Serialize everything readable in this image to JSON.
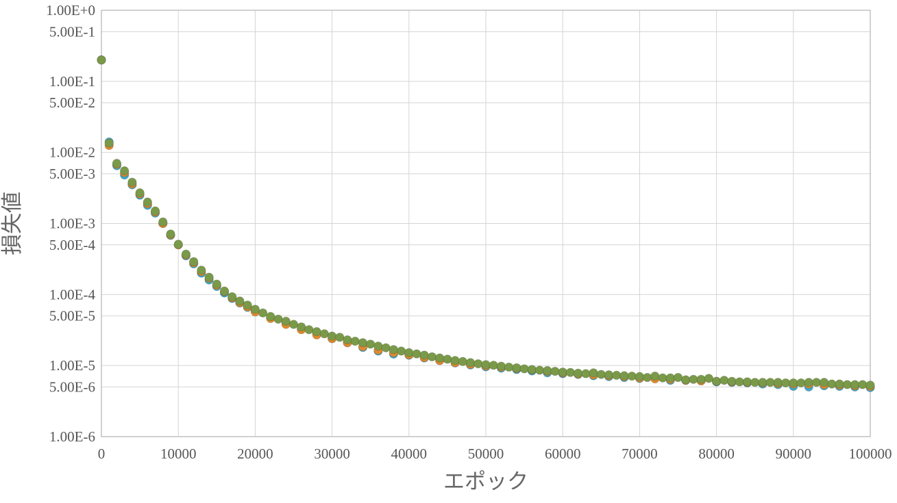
{
  "chart_data": {
    "type": "scatter",
    "xlabel": "エポック",
    "ylabel": "損失値",
    "xlim": [
      0,
      100000
    ],
    "ylim": [
      1e-06,
      1
    ],
    "y_scale": "log",
    "grid": true,
    "x_ticks": [
      "0",
      "10000",
      "20000",
      "30000",
      "40000",
      "50000",
      "60000",
      "70000",
      "80000",
      "90000",
      "100000"
    ],
    "y_ticks": [
      {
        "value": 1.0,
        "label": "1.00E+0"
      },
      {
        "value": 0.5,
        "label": "5.00E-1"
      },
      {
        "value": 0.1,
        "label": "1.00E-1"
      },
      {
        "value": 0.05,
        "label": "5.00E-2"
      },
      {
        "value": 0.01,
        "label": "1.00E-2"
      },
      {
        "value": 0.005,
        "label": "5.00E-3"
      },
      {
        "value": 0.001,
        "label": "1.00E-3"
      },
      {
        "value": 0.0005,
        "label": "5.00E-4"
      },
      {
        "value": 0.0001,
        "label": "1.00E-4"
      },
      {
        "value": 5e-05,
        "label": "5.00E-5"
      },
      {
        "value": 1e-05,
        "label": "1.00E-5"
      },
      {
        "value": 5e-06,
        "label": "5.00E-6"
      },
      {
        "value": 1e-06,
        "label": "1.00E-6"
      }
    ],
    "series": [
      {
        "color": "#3fa8c9",
        "x": [
          0,
          1000,
          2000,
          3000,
          4000,
          5000,
          6000,
          7000,
          8000,
          9000,
          10000,
          11000,
          12000,
          13000,
          14000,
          15000,
          16000,
          17000,
          18000,
          19000,
          20000,
          22000,
          24000,
          26000,
          28000,
          30000,
          32000,
          34000,
          36000,
          38000,
          40000,
          42000,
          44000,
          46000,
          48000,
          50000,
          52000,
          54000,
          56000,
          58000,
          60000,
          62000,
          64000,
          66000,
          68000,
          70000,
          72000,
          74000,
          76000,
          78000,
          80000,
          82000,
          84000,
          86000,
          88000,
          90000,
          92000,
          94000,
          96000,
          98000,
          100000
        ],
        "y": [
          0.2,
          0.014,
          0.0065,
          0.0048,
          0.0035,
          0.0025,
          0.0018,
          0.0014,
          0.001,
          0.00068,
          0.0005,
          0.00035,
          0.00027,
          0.0002,
          0.00016,
          0.00013,
          0.000105,
          8.8e-05,
          7.6e-05,
          6.6e-05,
          5.8e-05,
          4.7e-05,
          3.9e-05,
          3.3e-05,
          2.8e-05,
          2.4e-05,
          2.1e-05,
          1.8e-05,
          1.6e-05,
          1.45e-05,
          1.4e-05,
          1.28e-05,
          1.18e-05,
          1.09e-05,
          1.02e-05,
          9.6e-06,
          9.2e-06,
          8.8e-06,
          8.4e-06,
          7.9e-06,
          7.7e-06,
          7.5e-06,
          7.2e-06,
          7e-06,
          6.8e-06,
          6.6e-06,
          6.8e-06,
          6.2e-06,
          6.2e-06,
          6.1e-06,
          5.9e-06,
          5.8e-06,
          5.7e-06,
          5.5e-06,
          5.4e-06,
          5.1e-06,
          5e-06,
          5.2e-06,
          5.1e-06,
          5e-06,
          4.9e-06
        ]
      },
      {
        "color": "#e08a2e",
        "x": [
          0,
          1000,
          2000,
          3000,
          4000,
          5000,
          6000,
          7000,
          8000,
          9000,
          10000,
          11000,
          12000,
          13000,
          14000,
          15000,
          16000,
          17000,
          18000,
          19000,
          20000,
          22000,
          24000,
          26000,
          28000,
          30000,
          32000,
          34000,
          36000,
          38000,
          40000,
          42000,
          44000,
          46000,
          48000,
          50000,
          52000,
          54000,
          56000,
          58000,
          60000,
          62000,
          64000,
          66000,
          68000,
          70000,
          72000,
          74000,
          76000,
          78000,
          80000,
          82000,
          84000,
          86000,
          88000,
          90000,
          92000,
          94000,
          96000,
          98000,
          100000
        ],
        "y": [
          0.2,
          0.0125,
          0.0068,
          0.0052,
          0.0036,
          0.0026,
          0.0019,
          0.00145,
          0.001,
          0.00069,
          0.0005,
          0.00036,
          0.00028,
          0.00021,
          0.00017,
          0.000135,
          0.00011,
          9e-05,
          7.7e-05,
          6.7e-05,
          5.7e-05,
          4.6e-05,
          3.8e-05,
          3.2e-05,
          2.7e-05,
          2.4e-05,
          2.1e-05,
          1.85e-05,
          1.65e-05,
          1.52e-05,
          1.42e-05,
          1.3e-05,
          1.18e-05,
          1.1e-05,
          1.04e-05,
          9.9e-06,
          9.5e-06,
          9.1e-06,
          8.7e-06,
          8.3e-06,
          7.9e-06,
          7.6e-06,
          7.4e-06,
          7.2e-06,
          7e-06,
          6.7e-06,
          6.5e-06,
          6.4e-06,
          6.2e-06,
          6.1e-06,
          6e-06,
          5.9e-06,
          5.8e-06,
          5.7e-06,
          5.6e-06,
          5.5e-06,
          5.5e-06,
          5.4e-06,
          5.3e-06,
          5.2e-06,
          5.1e-06
        ]
      },
      {
        "color": "#7a9a4a",
        "x": [
          0,
          1000,
          2000,
          3000,
          4000,
          5000,
          6000,
          7000,
          8000,
          9000,
          10000,
          11000,
          12000,
          13000,
          14000,
          15000,
          16000,
          17000,
          18000,
          19000,
          20000,
          21000,
          22000,
          23000,
          24000,
          25000,
          26000,
          27000,
          28000,
          29000,
          30000,
          31000,
          32000,
          33000,
          34000,
          35000,
          36000,
          37000,
          38000,
          39000,
          40000,
          41000,
          42000,
          43000,
          44000,
          45000,
          46000,
          47000,
          48000,
          49000,
          50000,
          51000,
          52000,
          53000,
          54000,
          55000,
          56000,
          57000,
          58000,
          59000,
          60000,
          61000,
          62000,
          63000,
          64000,
          65000,
          66000,
          67000,
          68000,
          69000,
          70000,
          71000,
          72000,
          73000,
          74000,
          75000,
          76000,
          77000,
          78000,
          79000,
          80000,
          81000,
          82000,
          83000,
          84000,
          85000,
          86000,
          87000,
          88000,
          89000,
          90000,
          91000,
          92000,
          93000,
          94000,
          95000,
          96000,
          97000,
          98000,
          99000,
          100000
        ],
        "y": [
          0.2,
          0.0135,
          0.007,
          0.0055,
          0.0038,
          0.0027,
          0.002,
          0.0015,
          0.00105,
          0.00071,
          0.00051,
          0.00037,
          0.00029,
          0.00022,
          0.000175,
          0.00014,
          0.000112,
          9.3e-05,
          8.1e-05,
          7.1e-05,
          6.2e-05,
          5.5e-05,
          4.9e-05,
          4.5e-05,
          4.2e-05,
          3.8e-05,
          3.5e-05,
          3.2e-05,
          3e-05,
          2.8e-05,
          2.6e-05,
          2.5e-05,
          2.3e-05,
          2.2e-05,
          2.1e-05,
          2e-05,
          1.88e-05,
          1.78e-05,
          1.68e-05,
          1.6e-05,
          1.52e-05,
          1.46e-05,
          1.4e-05,
          1.33e-05,
          1.28e-05,
          1.23e-05,
          1.18e-05,
          1.14e-05,
          1.1e-05,
          1.06e-05,
          1.03e-05,
          1.01e-05,
          9.8e-06,
          9.5e-06,
          9.3e-06,
          9e-06,
          8.8e-06,
          8.6e-06,
          8.5e-06,
          8.3e-06,
          8.1e-06,
          8e-06,
          7.8e-06,
          7.7e-06,
          7.9e-06,
          7.5e-06,
          7.4e-06,
          7.3e-06,
          7.2e-06,
          7.1e-06,
          7e-06,
          6.8e-06,
          7.1e-06,
          6.7e-06,
          6.7e-06,
          6.8e-06,
          6.3e-06,
          6.4e-06,
          6.4e-06,
          6.6e-06,
          6e-06,
          6.2e-06,
          6e-06,
          5.9e-06,
          5.9e-06,
          5.8e-06,
          5.8e-06,
          5.8e-06,
          5.8e-06,
          5.7e-06,
          5.7e-06,
          5.7e-06,
          5.8e-06,
          5.8e-06,
          5.8e-06,
          5.5e-06,
          5.5e-06,
          5.4e-06,
          5.4e-06,
          5.4e-06,
          5.3e-06
        ]
      }
    ]
  }
}
